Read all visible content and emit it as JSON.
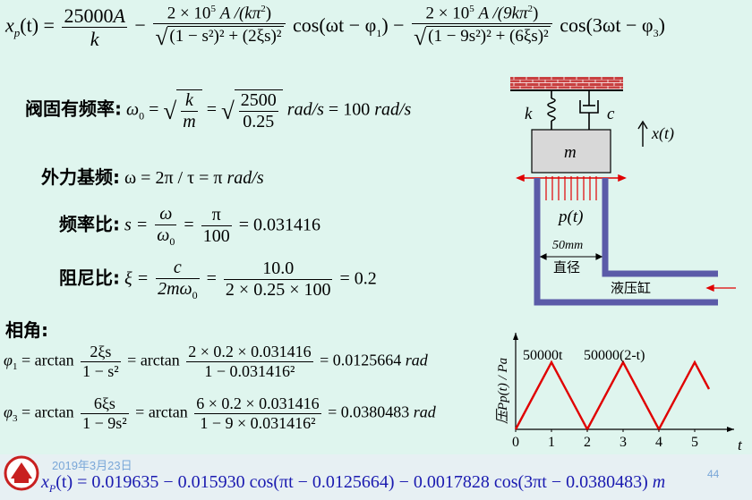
{
  "top_formula": {
    "lhs": "x",
    "lhs_sub": "p",
    "lhs_arg": "(t)",
    "t1_num": "25000",
    "t1_num_var": "A",
    "t1_den": "k",
    "t2_num": "2 × 10",
    "t2_num_exp": "5",
    "t2_num_rest": "A /(kπ",
    "t2_den": "(1 − s²)² + (2ξs)²",
    "t2_cos": "cos(ωt − φ",
    "t3_num": "2 × 10",
    "t3_num_exp": "5",
    "t3_num_rest": "A /(9kπ",
    "t3_den": "(1 − 9s²)² + (6ξs)²",
    "t3_cos": "cos(3ωt − φ"
  },
  "natural_freq": {
    "label": "阀固有频率:",
    "omega0": "ω",
    "eq1_num": "k",
    "eq1_den": "m",
    "eq2_num": "2500",
    "eq2_den": "0.25",
    "unit1": "rad/s",
    "result": "= 100",
    "unit2": "rad/s"
  },
  "force_freq": {
    "label": "外力基频:",
    "expr": "ω = 2π / τ = π",
    "unit": "rad/s"
  },
  "freq_ratio": {
    "label": "频率比:",
    "s": "s =",
    "num1": "ω",
    "den1": "ω",
    "num2": "π",
    "den2": "100",
    "result": "= 0.031416"
  },
  "damping_ratio": {
    "label": "阻尼比:",
    "xi": "ξ =",
    "num1": "c",
    "den1": "2mω",
    "num2": "10.0",
    "den2": "2 × 0.25 × 100",
    "result": "= 0.2"
  },
  "phase": {
    "label": "相角:",
    "phi1_lhs": "φ",
    "phi1_num1": "2ξs",
    "phi1_den1": "1 − s²",
    "phi1_num2": "2 × 0.2 × 0.031416",
    "phi1_den2": "1 − 0.031416²",
    "phi1_result": "= 0.0125664",
    "phi1_unit": "rad",
    "phi3_lhs": "φ",
    "phi3_num1": "6ξs",
    "phi3_den1": "1 − 9s²",
    "phi3_num2": "6 × 0.2 × 0.031416",
    "phi3_den2": "1 − 9 × 0.031416²",
    "phi3_result": "= 0.0380483",
    "phi3_unit": "rad",
    "arctan": "arctan"
  },
  "diagram": {
    "k": "k",
    "c": "c",
    "m": "m",
    "xt": "x(t)",
    "pt": "p(t)",
    "dia_value": "50mm",
    "dia_label": "直径",
    "cylinder_label": "液压缸"
  },
  "chart_data": {
    "type": "line",
    "title": "",
    "xlabel": "t",
    "ylabel": "压Pp(t) / Pa",
    "x": [
      0,
      1,
      2,
      3,
      4,
      5,
      5.4
    ],
    "y": [
      0,
      50000,
      0,
      50000,
      0,
      50000,
      30000
    ],
    "x_ticks": [
      "0",
      "1",
      "2",
      "3",
      "4",
      "5"
    ],
    "annotations": [
      "50000t",
      "50000(2-t)"
    ],
    "xlim": [
      0,
      6
    ],
    "ylim": [
      0,
      60000
    ],
    "color": "#e00000"
  },
  "footer": {
    "date": "2019年3月23日",
    "page": "44",
    "formula": "x",
    "formula_sub": "P",
    "formula_rest": "(t) = 0.019635 − 0.015930 cos(πt − 0.0125664) − 0.0017828 cos(3πt − 0.0380483)",
    "unit": "m"
  },
  "colors": {
    "background": "#dff5ee",
    "pipe": "#5b5ba8",
    "arrow_red": "#e00000",
    "formula_blue": "#1a1ab0",
    "footer_bar": "#e7f0f3"
  }
}
